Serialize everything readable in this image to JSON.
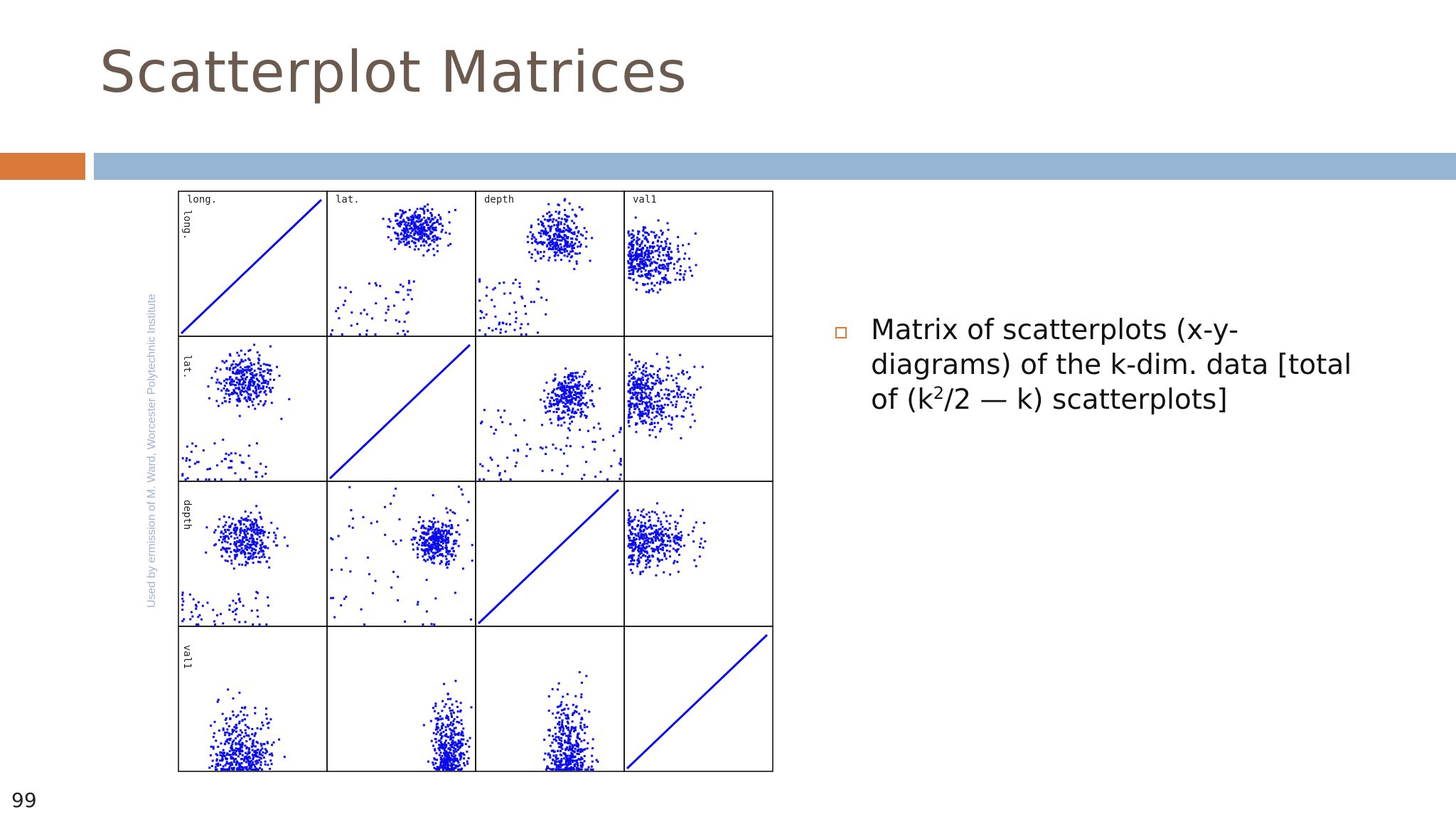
{
  "slide": {
    "title": "Scatterplot Matrices",
    "page_number": "99",
    "watermark": "Used by ermission of M. Ward, Worcester Polytechnic Institute",
    "accent_orange": "#d97a3a",
    "accent_blue": "#95b5d3",
    "title_color": "#6b5a4d"
  },
  "bullets": [
    {
      "text_before": "Matrix of scatterplots (x-y-diagrams) of the k-dim. data [total of (k",
      "superscript": "2",
      "text_after": "/2 — k) scatterplots]"
    }
  ],
  "chart_data": {
    "type": "scatter",
    "subtype": "scatterplot-matrix",
    "variables": [
      "long.",
      "lat.",
      "depth",
      "val1"
    ],
    "point_color": "#0a0aef",
    "grid": false,
    "legend": "none",
    "diagonal": "identity line (variable against itself)",
    "panels": [
      {
        "row": "long.",
        "col": "long.",
        "pattern": "diagonal-line"
      },
      {
        "row": "long.",
        "col": "lat.",
        "pattern": "dense cluster upper-right, sparse streaks lower-left"
      },
      {
        "row": "long.",
        "col": "depth",
        "pattern": "dense cluster center-right, streaks lower-left"
      },
      {
        "row": "long.",
        "col": "val1",
        "pattern": "horizontal spread, dense on left"
      },
      {
        "row": "lat.",
        "col": "long.",
        "pattern": "dense cluster upper-middle, sparse lower"
      },
      {
        "row": "lat.",
        "col": "lat.",
        "pattern": "diagonal-line"
      },
      {
        "row": "lat.",
        "col": "depth",
        "pattern": "tangled cluster center-right"
      },
      {
        "row": "lat.",
        "col": "val1",
        "pattern": "horizontal bands, dense on left"
      },
      {
        "row": "depth",
        "col": "long.",
        "pattern": "wedge cluster center"
      },
      {
        "row": "depth",
        "col": "lat.",
        "pattern": "cluster right-middle, sparse streaks"
      },
      {
        "row": "depth",
        "col": "depth",
        "pattern": "diagonal-line"
      },
      {
        "row": "depth",
        "col": "val1",
        "pattern": "horizontal spread, dense on left"
      },
      {
        "row": "val1",
        "col": "long.",
        "pattern": "vertical spike cluster left-center"
      },
      {
        "row": "val1",
        "col": "lat.",
        "pattern": "vertical spikes right"
      },
      {
        "row": "val1",
        "col": "depth",
        "pattern": "vertical spikes center-right"
      },
      {
        "row": "val1",
        "col": "val1",
        "pattern": "diagonal-line"
      }
    ]
  }
}
